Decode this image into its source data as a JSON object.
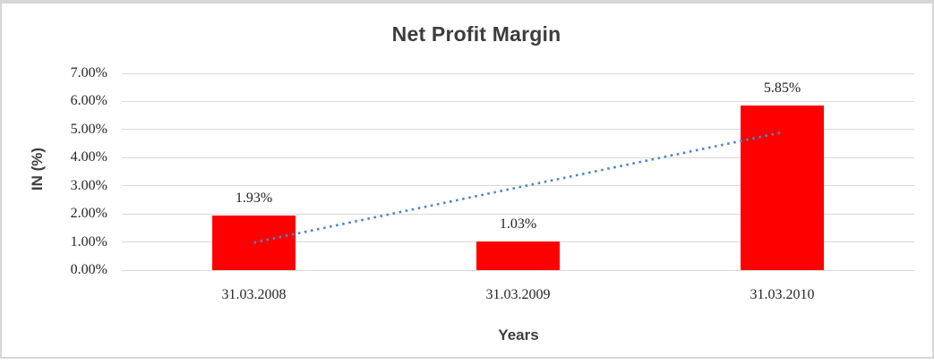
{
  "chart_data": {
    "type": "bar",
    "title": "Net Profit Margin",
    "xlabel": "Years",
    "ylabel": "IN (%)",
    "categories": [
      "31.03.2008",
      "31.03.2009",
      "31.03.2010"
    ],
    "values": [
      1.93,
      1.03,
      5.85
    ],
    "data_labels": [
      "1.93%",
      "1.03%",
      "5.85%"
    ],
    "ylim": [
      0,
      7
    ],
    "ytick_interval": 1,
    "ytick_labels": [
      "0.00%",
      "1.00%",
      "2.00%",
      "3.00%",
      "4.00%",
      "5.00%",
      "6.00%",
      "7.00%"
    ],
    "grid": "horizontal",
    "legend": "none",
    "bar_color": "#ff0000",
    "gridline_color": "#d9d9d9",
    "title_color": "#3d3d3d",
    "tick_color": "#262626",
    "trendline": {
      "type": "linear",
      "style": "dotted",
      "color": "#4a87c8",
      "start_value": 0.98,
      "end_value": 4.9
    }
  }
}
